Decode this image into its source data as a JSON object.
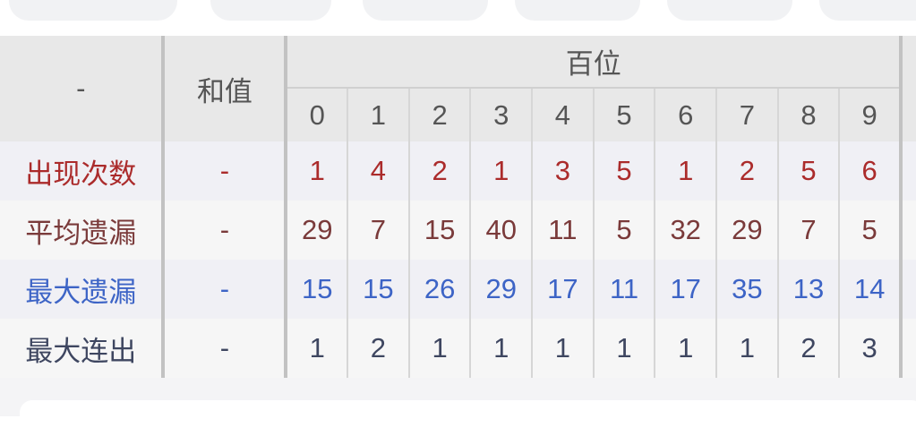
{
  "filter_pills": [
    "",
    "",
    "",
    "",
    "",
    ""
  ],
  "header": {
    "first": "-",
    "sum": "和值",
    "group": "百位",
    "digits": [
      "0",
      "1",
      "2",
      "3",
      "4",
      "5",
      "6",
      "7",
      "8",
      "9"
    ]
  },
  "rows": [
    {
      "label": "出现次数",
      "sum": "-",
      "values": [
        "1",
        "4",
        "2",
        "1",
        "3",
        "5",
        "1",
        "2",
        "5",
        "6"
      ],
      "color": "#ab2b2b"
    },
    {
      "label": "平均遗漏",
      "sum": "-",
      "values": [
        "29",
        "7",
        "15",
        "40",
        "11",
        "5",
        "32",
        "29",
        "7",
        "5"
      ],
      "color": "#7a3a3a"
    },
    {
      "label": "最大遗漏",
      "sum": "-",
      "values": [
        "15",
        "15",
        "26",
        "29",
        "17",
        "11",
        "17",
        "35",
        "13",
        "14"
      ],
      "color": "#3d64c6"
    },
    {
      "label": "最大连出",
      "sum": "-",
      "values": [
        "1",
        "2",
        "1",
        "1",
        "1",
        "1",
        "1",
        "1",
        "2",
        "3"
      ],
      "color": "#3e4660"
    }
  ]
}
